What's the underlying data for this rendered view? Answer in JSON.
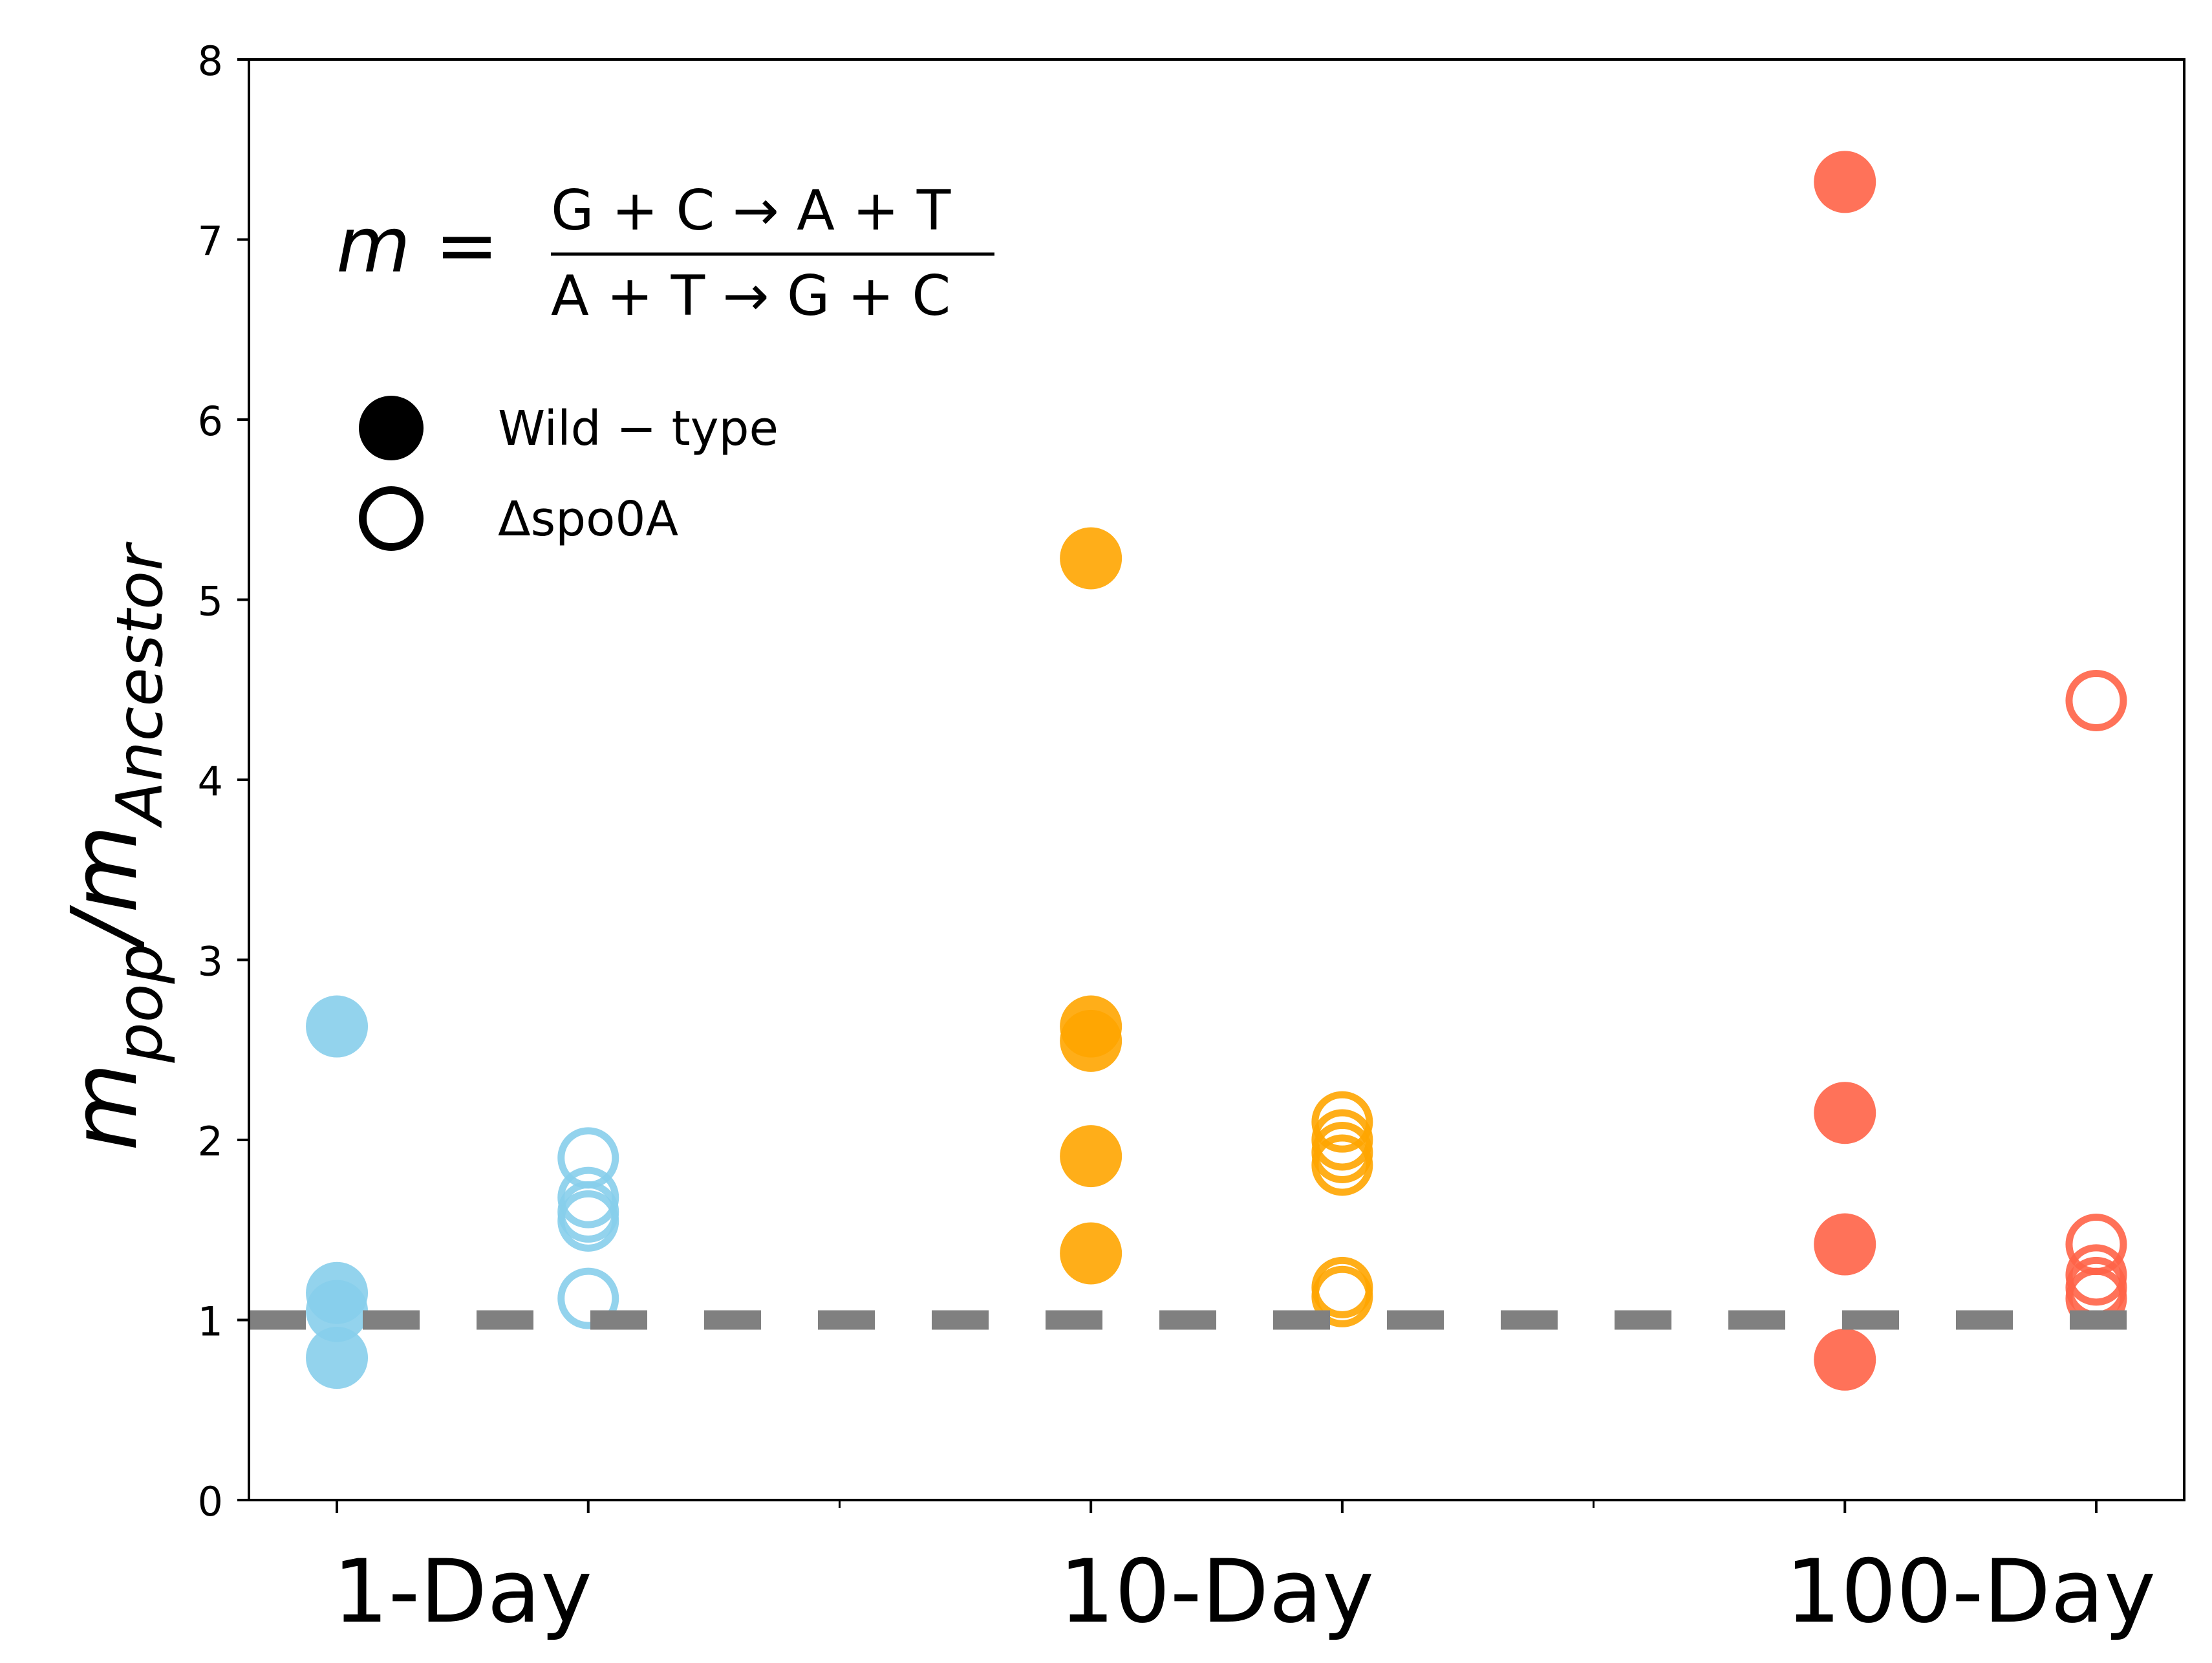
{
  "chart_data": {
    "type": "scatter",
    "ylabel": {
      "main": "m",
      "sub1": "pop",
      "slash": "/",
      "main2": "m",
      "sub2": "Ancestor"
    },
    "ylim": [
      0,
      8
    ],
    "yticks": [
      "0",
      "1",
      "2",
      "3",
      "4",
      "5",
      "6",
      "7",
      "8"
    ],
    "xlim": [
      -0.35,
      7.35
    ],
    "group_labels": [
      {
        "label": "1-Day",
        "x": 0.5
      },
      {
        "label": "10-Day",
        "x": 3.5
      },
      {
        "label": "100-Day",
        "x": 6.5
      }
    ],
    "xticks_major": [
      0,
      1,
      3,
      4,
      6,
      7
    ],
    "xticks_minor": [
      2,
      5
    ],
    "reference_line": {
      "y": 1.0,
      "color": "#808080",
      "style": "dashed"
    },
    "equation": {
      "lhs": "m =",
      "numerator": "G + C → A + T",
      "denominator": "A + T → G + C"
    },
    "legend": {
      "placement": "upper-left",
      "entries": [
        {
          "label": "Wild − type",
          "marker": "filled"
        },
        {
          "label": "Δspo0A",
          "marker": "open"
        }
      ]
    },
    "series": [
      {
        "group": "1-Day",
        "strain": "Wild-type",
        "marker": "filled",
        "color": "#87CEEB",
        "x": 0,
        "values": [
          2.63,
          1.15,
          1.05,
          0.79
        ]
      },
      {
        "group": "1-Day",
        "strain": "spo0A",
        "marker": "open",
        "color": "#87CEEB",
        "x": 1,
        "values": [
          1.9,
          1.68,
          1.6,
          1.55,
          1.12
        ]
      },
      {
        "group": "10-Day",
        "strain": "Wild-type",
        "marker": "filled",
        "color": "#FFA500",
        "x": 3,
        "values": [
          5.23,
          2.63,
          2.55,
          1.91,
          1.37
        ]
      },
      {
        "group": "10-Day",
        "strain": "spo0A",
        "marker": "open",
        "color": "#FFA500",
        "x": 4,
        "values": [
          2.1,
          2.0,
          1.93,
          1.86,
          1.18,
          1.13
        ]
      },
      {
        "group": "100-Day",
        "strain": "Wild-type",
        "marker": "filled",
        "color": "#FF6347",
        "x": 6,
        "values": [
          7.32,
          2.15,
          1.42,
          0.78
        ]
      },
      {
        "group": "100-Day",
        "strain": "spo0A",
        "marker": "open",
        "color": "#FF6347",
        "x": 7,
        "values": [
          4.44,
          1.42,
          1.25,
          1.18,
          1.12
        ]
      }
    ]
  }
}
